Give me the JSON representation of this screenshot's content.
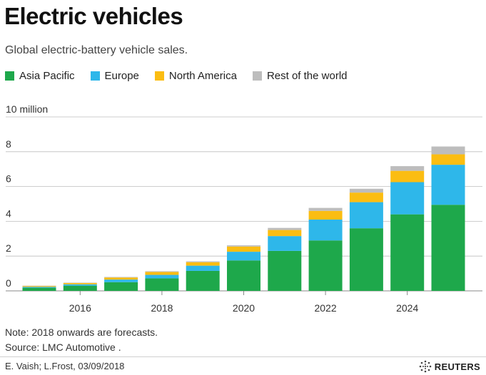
{
  "header": {
    "title": "Electric vehicles",
    "subtitle": "Global electric-battery vehicle sales."
  },
  "legend": [
    {
      "label": "Asia Pacific",
      "color": "#1ea84b"
    },
    {
      "label": "Europe",
      "color": "#2eb7ea"
    },
    {
      "label": "North America",
      "color": "#fbbd12"
    },
    {
      "label": "Rest of the world",
      "color": "#bdbdbd"
    }
  ],
  "notes": {
    "forecast": "Note: 2018 onwards are forecasts.",
    "source": "Source: LMC Automotive ."
  },
  "credit": "E. Vaish; L.Frost, 03/09/2018",
  "brand": "REUTERS",
  "chart_data": {
    "type": "bar",
    "stacked": true,
    "categories": [
      2015,
      2016,
      2017,
      2018,
      2019,
      2020,
      2021,
      2022,
      2023,
      2024,
      2025
    ],
    "x_tick_labels": [
      "2016",
      "2018",
      "2020",
      "2022",
      "2024"
    ],
    "y_tick_labels": [
      "0",
      "2",
      "4",
      "6",
      "8",
      "10 million"
    ],
    "ylim": [
      0,
      10
    ],
    "grid": true,
    "legend_position": "top",
    "series": [
      {
        "name": "Asia Pacific",
        "color": "#1ea84b",
        "values": [
          0.18,
          0.3,
          0.5,
          0.72,
          1.15,
          1.75,
          2.3,
          2.9,
          3.6,
          4.4,
          4.95
        ]
      },
      {
        "name": "Europe",
        "color": "#2eb7ea",
        "values": [
          0.05,
          0.08,
          0.15,
          0.2,
          0.3,
          0.5,
          0.85,
          1.2,
          1.5,
          1.85,
          2.3
        ]
      },
      {
        "name": "North America",
        "color": "#fbbd12",
        "values": [
          0.05,
          0.07,
          0.12,
          0.17,
          0.2,
          0.3,
          0.35,
          0.5,
          0.55,
          0.65,
          0.6
        ]
      },
      {
        "name": "Rest of the world",
        "color": "#bdbdbd",
        "values": [
          0.02,
          0.02,
          0.03,
          0.04,
          0.05,
          0.07,
          0.12,
          0.17,
          0.22,
          0.27,
          0.45
        ]
      }
    ]
  }
}
